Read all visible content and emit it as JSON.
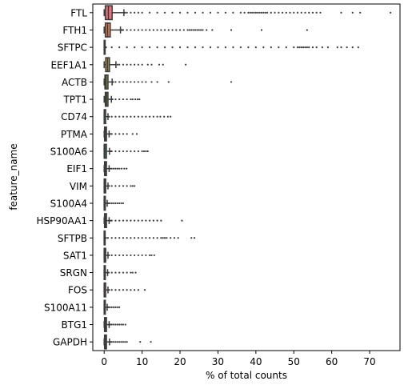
{
  "chart_data": {
    "type": "boxplot",
    "orientation": "horizontal",
    "xlabel": "% of total counts",
    "ylabel": "feature_name",
    "xlim": [
      -3,
      78
    ],
    "xticks": [
      0,
      10,
      20,
      30,
      40,
      50,
      60,
      70
    ],
    "grid": false,
    "legend": "none",
    "colors": {
      "axis": "#000000",
      "whisker": "#3a3a3a",
      "outlier": "#3a3a3a"
    },
    "categories": [
      "FTL",
      "FTH1",
      "SFTPC",
      "EEF1A1",
      "ACTB",
      "TPT1",
      "CD74",
      "PTMA",
      "S100A6",
      "EIF1",
      "VIM",
      "S100A4",
      "HSP90AA1",
      "SFTPB",
      "SAT1",
      "SRGN",
      "FOS",
      "S100A11",
      "BTG1",
      "GAPDH"
    ],
    "boxes": [
      {
        "name": "FTL",
        "color": "#e7747c",
        "min": 0,
        "q1": 0.3,
        "median": 1.1,
        "q3": 2.1,
        "max": 5.2,
        "outliers": [
          5.5,
          6,
          7,
          8,
          9,
          10,
          12,
          14,
          16,
          18,
          20,
          22,
          24,
          26,
          28,
          30,
          32,
          34,
          36,
          37,
          38,
          38.5,
          39,
          39.5,
          40,
          40.5,
          41,
          41.5,
          42,
          42.5,
          43,
          44,
          45,
          46,
          47,
          48,
          49,
          50,
          51,
          52,
          53,
          54,
          55,
          56,
          57,
          62.5,
          65.5,
          67.5,
          75.5
        ]
      },
      {
        "name": "FTH1",
        "color": "#e07f55",
        "min": 0,
        "q1": 0.3,
        "median": 0.9,
        "q3": 1.6,
        "max": 4.3,
        "outliers": [
          4.6,
          5,
          6,
          7,
          8,
          9,
          10,
          11,
          12,
          13,
          14,
          15,
          16,
          17,
          18,
          19,
          20,
          21,
          22,
          22.5,
          23,
          23.5,
          24,
          24.5,
          25,
          25.5,
          26,
          27,
          28.5,
          33.5,
          41.5,
          53.5
        ]
      },
      {
        "name": "SFTPC",
        "color": "#c9933e",
        "min": 0,
        "q1": 0,
        "median": 0,
        "q3": 0.05,
        "max": 0.1,
        "outliers": [
          0.5,
          2,
          4,
          6,
          8,
          10,
          12,
          14,
          16,
          18,
          20,
          22,
          24,
          26,
          28,
          30,
          32,
          34,
          36,
          38,
          40,
          42,
          44,
          46,
          48,
          50,
          51,
          51.5,
          52,
          52.5,
          53,
          53.5,
          54,
          55,
          56,
          57.5,
          59,
          61.5,
          62.5,
          64,
          65.5,
          67
        ]
      },
      {
        "name": "EEF1A1",
        "color": "#b29b3c",
        "min": 0,
        "q1": 0.4,
        "median": 0.9,
        "q3": 1.4,
        "max": 3.1,
        "outliers": [
          3.5,
          4,
          5,
          6,
          7,
          8,
          9,
          10,
          11.5,
          12.5,
          14.5,
          15.5,
          21.5
        ]
      },
      {
        "name": "ACTB",
        "color": "#97a33d",
        "min": 0,
        "q1": 0.2,
        "median": 0.5,
        "q3": 1.0,
        "max": 2.1,
        "outliers": [
          2.4,
          3,
          4,
          5,
          6,
          7,
          8,
          9,
          10,
          11,
          12.5,
          14,
          17,
          33.5
        ]
      },
      {
        "name": "TPT1",
        "color": "#6fad3d",
        "min": 0,
        "q1": 0.3,
        "median": 0.6,
        "q3": 1.0,
        "max": 1.9,
        "outliers": [
          2.2,
          3,
          4,
          5,
          6,
          7,
          7.5,
          8.2,
          8.8,
          9.3
        ]
      },
      {
        "name": "CD74",
        "color": "#3bb24d",
        "min": 0,
        "q1": 0,
        "median": 0.05,
        "q3": 0.4,
        "max": 1.0,
        "outliers": [
          1.3,
          2,
          3,
          4,
          5,
          6,
          7,
          8,
          9,
          10,
          11,
          12,
          13,
          14,
          14.8,
          15.8,
          16.8,
          17.5
        ]
      },
      {
        "name": "PTMA",
        "color": "#38b07a",
        "min": 0,
        "q1": 0.1,
        "median": 0.3,
        "q3": 0.6,
        "max": 1.3,
        "outliers": [
          1.6,
          2,
          3,
          4,
          5,
          6,
          7.5,
          8.6
        ]
      },
      {
        "name": "S100A6",
        "color": "#39ad93",
        "min": 0,
        "q1": 0,
        "median": 0.2,
        "q3": 0.6,
        "max": 1.4,
        "outliers": [
          1.7,
          2,
          3,
          4,
          5,
          6,
          7,
          8,
          9,
          10,
          10.5,
          11,
          11.5
        ]
      },
      {
        "name": "EIF1",
        "color": "#3aabaa",
        "min": 0,
        "q1": 0.1,
        "median": 0.3,
        "q3": 0.6,
        "max": 1.3,
        "outliers": [
          1.6,
          2,
          2.5,
          3,
          3.5,
          4,
          4.6,
          5.3,
          5.9
        ]
      },
      {
        "name": "VIM",
        "color": "#3ca8bd",
        "min": 0,
        "q1": 0,
        "median": 0.1,
        "q3": 0.4,
        "max": 1.0,
        "outliers": [
          1.3,
          2,
          3,
          4,
          5,
          6,
          7,
          7.5,
          8
        ]
      },
      {
        "name": "S100A4",
        "color": "#3ea2d6",
        "min": 0,
        "q1": 0,
        "median": 0.05,
        "q3": 0.3,
        "max": 0.8,
        "outliers": [
          1.1,
          1.5,
          2,
          2.5,
          3,
          3.5,
          4,
          4.5,
          5
        ]
      },
      {
        "name": "HSP90AA1",
        "color": "#5a9bee",
        "min": 0,
        "q1": 0.1,
        "median": 0.3,
        "q3": 0.6,
        "max": 1.3,
        "outliers": [
          1.6,
          2,
          3,
          4,
          5,
          6,
          7,
          8,
          9,
          10,
          11,
          12,
          13,
          14,
          15,
          20.5
        ]
      },
      {
        "name": "SFTPB",
        "color": "#9a8ef0",
        "min": 0,
        "q1": 0,
        "median": 0,
        "q3": 0.05,
        "max": 0.1,
        "outliers": [
          0.5,
          1,
          2,
          3,
          4,
          5,
          6,
          7,
          8,
          9,
          10,
          11,
          12,
          13,
          14,
          15,
          15.5,
          16,
          16.5,
          17.5,
          18.5,
          19.5,
          23,
          23.8
        ]
      },
      {
        "name": "SAT1",
        "color": "#c27fef",
        "min": 0,
        "q1": 0,
        "median": 0.1,
        "q3": 0.4,
        "max": 1.0,
        "outliers": [
          1.3,
          2,
          3,
          4,
          5,
          6,
          7,
          8,
          9,
          10,
          11,
          12,
          12.5,
          13.2
        ]
      },
      {
        "name": "SRGN",
        "color": "#dd6fe6",
        "min": 0,
        "q1": 0,
        "median": 0.05,
        "q3": 0.3,
        "max": 0.9,
        "outliers": [
          1.2,
          2,
          3,
          4,
          5,
          6,
          7,
          7.5,
          8.3
        ]
      },
      {
        "name": "FOS",
        "color": "#ea6ad0",
        "min": 0,
        "q1": 0,
        "median": 0.05,
        "q3": 0.4,
        "max": 1.0,
        "outliers": [
          1.3,
          2,
          3,
          4,
          5,
          6,
          7,
          8,
          9,
          10.7
        ]
      },
      {
        "name": "S100A11",
        "color": "#ee6cb7",
        "min": 0,
        "q1": 0,
        "median": 0.05,
        "q3": 0.3,
        "max": 0.8,
        "outliers": [
          1.1,
          1.5,
          2,
          2.5,
          3,
          3.5,
          4
        ]
      },
      {
        "name": "BTG1",
        "color": "#ee6e9e",
        "min": 0,
        "q1": 0.1,
        "median": 0.3,
        "q3": 0.6,
        "max": 1.3,
        "outliers": [
          1.6,
          2,
          2.5,
          3,
          3.5,
          4,
          4.5,
          5,
          5.6
        ]
      },
      {
        "name": "GAPDH",
        "color": "#e9728a",
        "min": 0,
        "q1": 0.1,
        "median": 0.3,
        "q3": 0.6,
        "max": 1.4,
        "outliers": [
          1.7,
          2,
          2.5,
          3,
          3.5,
          4,
          4.5,
          5,
          5.5,
          6,
          9.5,
          12.3
        ]
      }
    ]
  }
}
